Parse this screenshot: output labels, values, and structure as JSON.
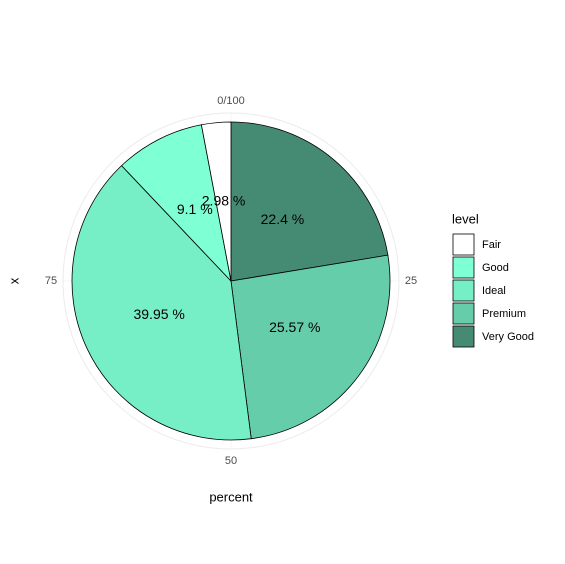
{
  "chart_data": {
    "type": "pie",
    "categories": [
      "Fair",
      "Good",
      "Ideal",
      "Premium",
      "Very Good"
    ],
    "values": [
      2.98,
      9.1,
      39.95,
      25.57,
      22.4
    ],
    "value_labels": [
      "2.98 %",
      "9.1 %",
      "39.95 %",
      "25.57 %",
      "22.4 %"
    ],
    "colors": [
      "#ffffff",
      "#7fffd4",
      "#76eec6",
      "#66cdaa",
      "#458b74"
    ],
    "xlabel": "percent",
    "ylabel": "x",
    "legend_title": "level",
    "theta_lim": [
      0,
      100
    ],
    "theta_ticks": [
      {
        "value": 0,
        "label": "0/100"
      },
      25,
      50,
      75
    ]
  }
}
